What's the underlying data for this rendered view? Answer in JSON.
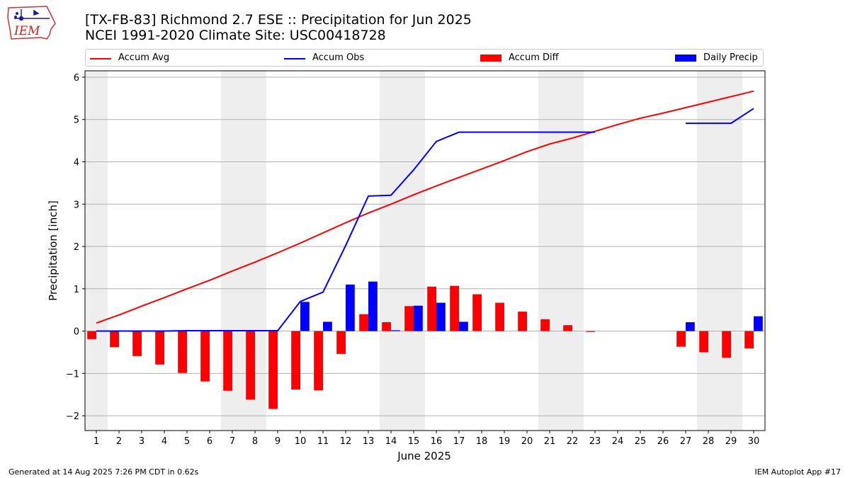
{
  "header": {
    "title_line1": "[TX-FB-83] Richmond 2.7 ESE :: Precipitation for Jun 2025",
    "title_line2": "NCEI 1991-2020 Climate Site: USC00418728",
    "logo_text": "IEM"
  },
  "footer": {
    "generated": "Generated at 14 Aug 2025 7:26 PM CDT in 0.62s",
    "app": "IEM Autoplot App #17"
  },
  "colors": {
    "accum_avg": "#ff0000",
    "accum_obs": "#0000ff",
    "accum_diff": "#ff0000",
    "daily_precip": "#0000ff",
    "weekend_shade": "#eeeeee",
    "grid": "#b0b0b0"
  },
  "chart_data": {
    "type": "bar",
    "xlabel": "June 2025",
    "ylabel": "Precipitation [inch]",
    "xlim": [
      0.5,
      30.5
    ],
    "ylim": [
      -2.35,
      6.15
    ],
    "yticks": [
      -2,
      -1,
      0,
      1,
      2,
      3,
      4,
      5,
      6
    ],
    "ytick_labels": [
      "−2",
      "−1",
      "0",
      "1",
      "2",
      "3",
      "4",
      "5",
      "6"
    ],
    "grid": "horizontal",
    "legend_placement": "top",
    "categories": [
      "1",
      "2",
      "3",
      "4",
      "5",
      "6",
      "7",
      "8",
      "9",
      "10",
      "11",
      "12",
      "13",
      "14",
      "15",
      "16",
      "17",
      "18",
      "19",
      "20",
      "21",
      "22",
      "23",
      "24",
      "25",
      "26",
      "27",
      "28",
      "29",
      "30"
    ],
    "weekend_ranges": [
      [
        0.5,
        1.5
      ],
      [
        6.5,
        8.5
      ],
      [
        13.5,
        15.5
      ],
      [
        20.5,
        22.5
      ],
      [
        27.5,
        29.5
      ]
    ],
    "series": [
      {
        "name": "Accum Avg",
        "kind": "line",
        "values": [
          0.19,
          0.38,
          0.59,
          0.79,
          1.0,
          1.2,
          1.42,
          1.63,
          1.85,
          2.08,
          2.32,
          2.56,
          2.79,
          3.0,
          3.22,
          3.43,
          3.63,
          3.83,
          4.03,
          4.24,
          4.42,
          4.56,
          4.72,
          4.88,
          5.03,
          5.15,
          5.28,
          5.41,
          5.54,
          5.67
        ]
      },
      {
        "name": "Accum Obs",
        "kind": "line",
        "values": [
          0.0,
          0.0,
          0.0,
          0.0,
          0.01,
          0.01,
          0.01,
          0.01,
          0.01,
          0.7,
          0.92,
          2.02,
          3.19,
          3.21,
          3.81,
          4.48,
          4.7,
          4.7,
          4.7,
          4.7,
          4.7,
          4.7,
          4.7,
          null,
          null,
          null,
          4.91,
          4.91,
          4.91,
          5.26
        ]
      },
      {
        "name": "Accum Diff",
        "kind": "bar",
        "values": [
          -0.19,
          -0.38,
          -0.59,
          -0.79,
          -0.99,
          -1.19,
          -1.41,
          -1.62,
          -1.84,
          -1.38,
          -1.4,
          -0.54,
          0.4,
          0.21,
          0.59,
          1.05,
          1.07,
          0.87,
          0.67,
          0.46,
          0.28,
          0.14,
          -0.02,
          null,
          null,
          null,
          -0.37,
          -0.5,
          -0.63,
          -0.41
        ]
      },
      {
        "name": "Daily Precip",
        "kind": "bar",
        "values": [
          0.0,
          0.0,
          0.0,
          0.0,
          0.01,
          0.0,
          0.0,
          0.0,
          0.0,
          0.69,
          0.22,
          1.1,
          1.17,
          0.02,
          0.6,
          0.67,
          0.22,
          0.0,
          0.0,
          0.0,
          0.0,
          0.0,
          0.0,
          null,
          null,
          null,
          0.21,
          0.0,
          0.0,
          0.35
        ]
      }
    ]
  }
}
